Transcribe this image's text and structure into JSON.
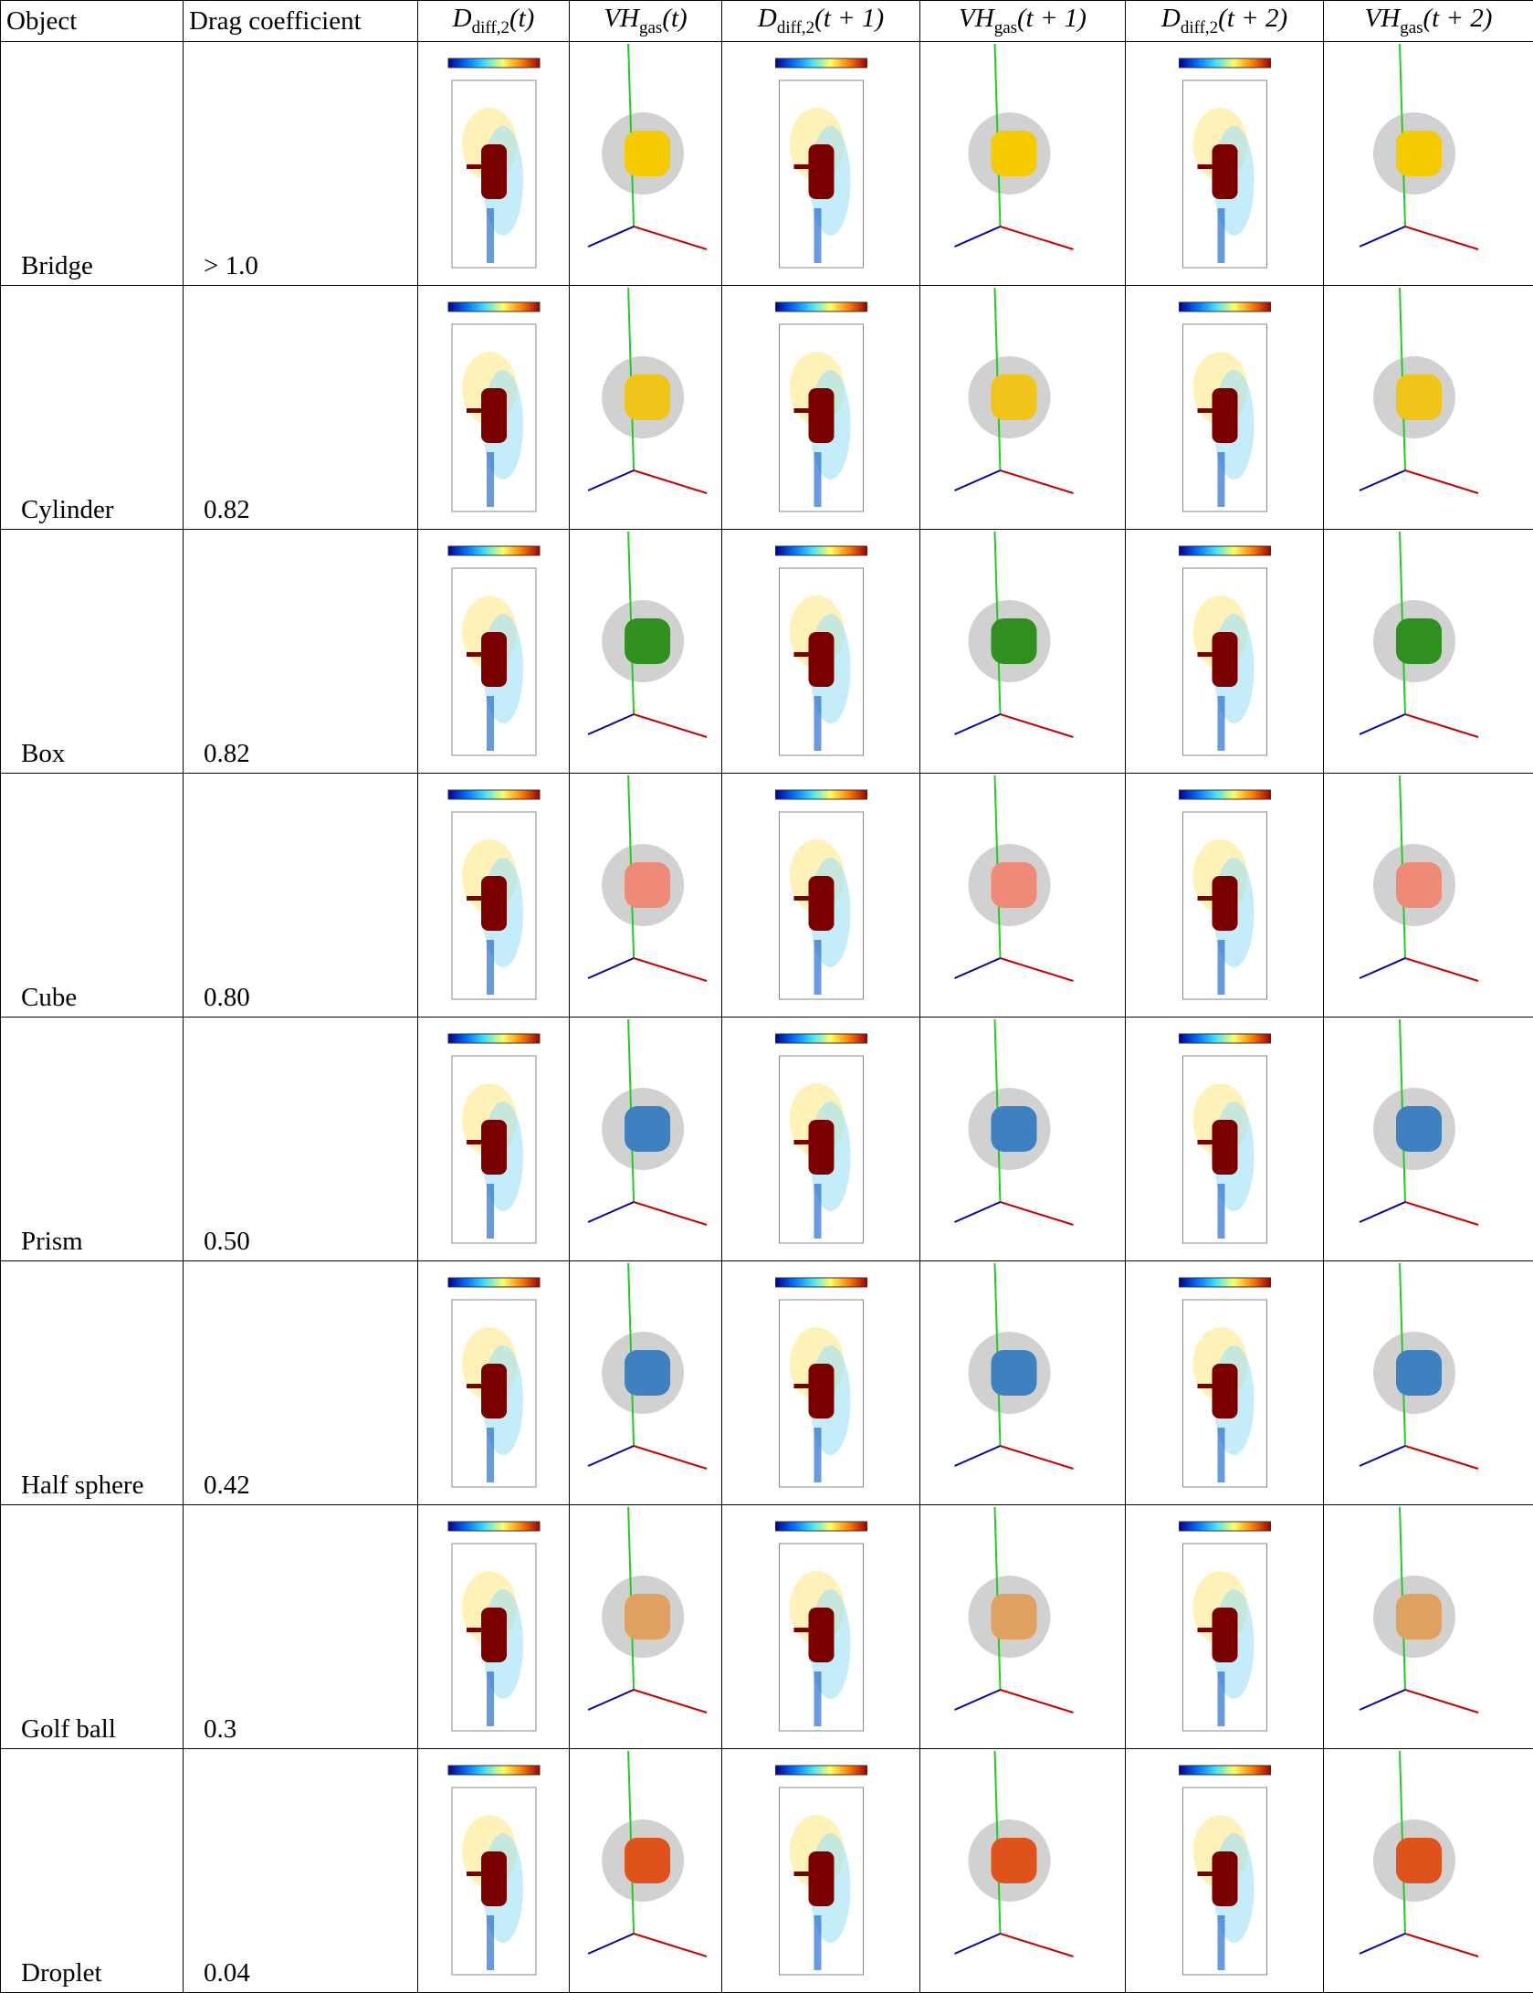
{
  "table": {
    "header": [
      {
        "text": "Object"
      },
      {
        "text": "Drag coefficient"
      },
      {
        "base": "D",
        "sub": "diff,2",
        "arg": "(t)"
      },
      {
        "base": "VH",
        "sub": "gas",
        "arg": "(t)"
      },
      {
        "base": "D",
        "sub": "diff,2",
        "arg": "(t + 1)"
      },
      {
        "base": "VH",
        "sub": "gas",
        "arg": "(t + 1)"
      },
      {
        "base": "D",
        "sub": "diff,2",
        "arg": "(t + 2)"
      },
      {
        "base": "VH",
        "sub": "gas",
        "arg": "(t + 2)"
      }
    ],
    "rows": [
      {
        "object": "Bridge",
        "drag": "> 1.0",
        "color": "#f5cb00"
      },
      {
        "object": "Cylinder",
        "drag": "0.82",
        "color": "#f0c419"
      },
      {
        "object": "Box",
        "drag": "0.82",
        "color": "#2f8f1f"
      },
      {
        "object": "Cube",
        "drag": "0.80",
        "color": "#f08a78"
      },
      {
        "object": "Prism",
        "drag": "0.50",
        "color": "#3f80c0"
      },
      {
        "object": "Half sphere",
        "drag": "0.42",
        "color": "#3f80c0"
      },
      {
        "object": "Golf ball",
        "drag": "0.3",
        "color": "#e0a060"
      },
      {
        "object": "Droplet",
        "drag": "0.04",
        "color": "#e0521c"
      }
    ]
  }
}
